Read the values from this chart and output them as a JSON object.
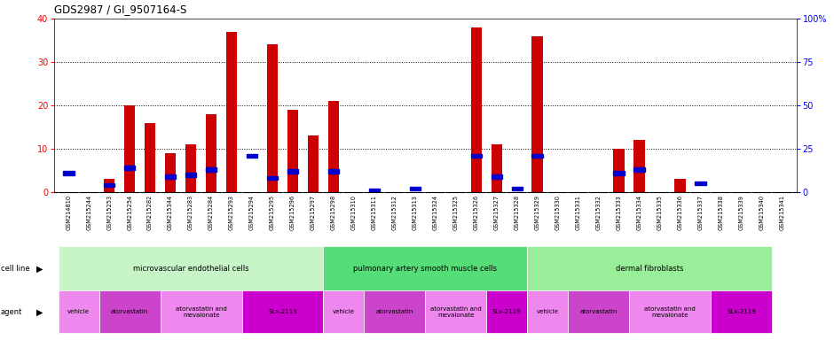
{
  "title": "GDS2987 / GI_9507164-S",
  "samples": [
    "GSM214810",
    "GSM215244",
    "GSM215253",
    "GSM215254",
    "GSM215282",
    "GSM215344",
    "GSM215283",
    "GSM215284",
    "GSM215293",
    "GSM215294",
    "GSM215295",
    "GSM215296",
    "GSM215297",
    "GSM215298",
    "GSM215310",
    "GSM215311",
    "GSM215312",
    "GSM215313",
    "GSM215324",
    "GSM215325",
    "GSM215326",
    "GSM215327",
    "GSM215328",
    "GSM215329",
    "GSM215330",
    "GSM215331",
    "GSM215332",
    "GSM215333",
    "GSM215334",
    "GSM215335",
    "GSM215336",
    "GSM215337",
    "GSM215338",
    "GSM215339",
    "GSM215340",
    "GSM215341"
  ],
  "counts": [
    0,
    0,
    3,
    20,
    16,
    9,
    11,
    18,
    37,
    0,
    34,
    19,
    13,
    21,
    0,
    0,
    0,
    0,
    0,
    0,
    38,
    11,
    0,
    36,
    0,
    0,
    0,
    10,
    12,
    0,
    3,
    0,
    0,
    0,
    0,
    0
  ],
  "percentile_ranks": [
    11,
    0,
    4,
    14,
    0,
    9,
    10,
    13,
    0,
    21,
    8,
    12,
    0,
    12,
    0,
    1,
    0,
    2,
    0,
    0,
    21,
    9,
    2,
    21,
    0,
    0,
    0,
    11,
    13,
    0,
    0,
    5,
    0,
    0,
    0,
    0
  ],
  "cell_line_groups": [
    {
      "label": "microvascular endothelial cells",
      "start": 0,
      "end": 13,
      "color": "#C8F5C8"
    },
    {
      "label": "pulmonary artery smooth muscle cells",
      "start": 13,
      "end": 23,
      "color": "#55DD77"
    },
    {
      "label": "dermal fibroblasts",
      "start": 23,
      "end": 35,
      "color": "#99EE99"
    }
  ],
  "agent_groups": [
    {
      "label": "vehicle",
      "start": 0,
      "end": 2,
      "color": "#EE88EE"
    },
    {
      "label": "atorvastatin",
      "start": 2,
      "end": 5,
      "color": "#CC44CC"
    },
    {
      "label": "atorvastatin and\nmevalonate",
      "start": 5,
      "end": 9,
      "color": "#EE88EE"
    },
    {
      "label": "SLx-2119",
      "start": 9,
      "end": 13,
      "color": "#CC00CC"
    },
    {
      "label": "vehicle",
      "start": 13,
      "end": 15,
      "color": "#EE88EE"
    },
    {
      "label": "atorvastatin",
      "start": 15,
      "end": 18,
      "color": "#CC44CC"
    },
    {
      "label": "atorvastatin and\nmevalonate",
      "start": 18,
      "end": 21,
      "color": "#EE88EE"
    },
    {
      "label": "SLx-2119",
      "start": 21,
      "end": 23,
      "color": "#CC00CC"
    },
    {
      "label": "vehicle",
      "start": 23,
      "end": 25,
      "color": "#EE88EE"
    },
    {
      "label": "atorvastatin",
      "start": 25,
      "end": 28,
      "color": "#CC44CC"
    },
    {
      "label": "atorvastatin and\nmevalonate",
      "start": 28,
      "end": 32,
      "color": "#EE88EE"
    },
    {
      "label": "SLx-2119",
      "start": 32,
      "end": 35,
      "color": "#CC00CC"
    }
  ],
  "bar_color": "#CC0000",
  "square_color": "#0000CC",
  "ylim_left": [
    0,
    40
  ],
  "ylim_right": [
    0,
    100
  ],
  "yticks_left": [
    0,
    10,
    20,
    30,
    40
  ],
  "yticks_right": [
    0,
    25,
    50,
    75,
    100
  ],
  "ytick_labels_right": [
    "0",
    "25",
    "50",
    "75",
    "100%"
  ],
  "background_color": "#FFFFFF",
  "plot_bg_color": "#FFFFFF",
  "tickarea_bg": "#D4D4D4",
  "grid_color": "#000000",
  "grid_ticks": [
    10,
    20,
    30
  ]
}
